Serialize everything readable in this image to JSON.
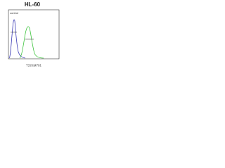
{
  "title": "HL-60",
  "label": "control",
  "footer": "T22SM701"
}
